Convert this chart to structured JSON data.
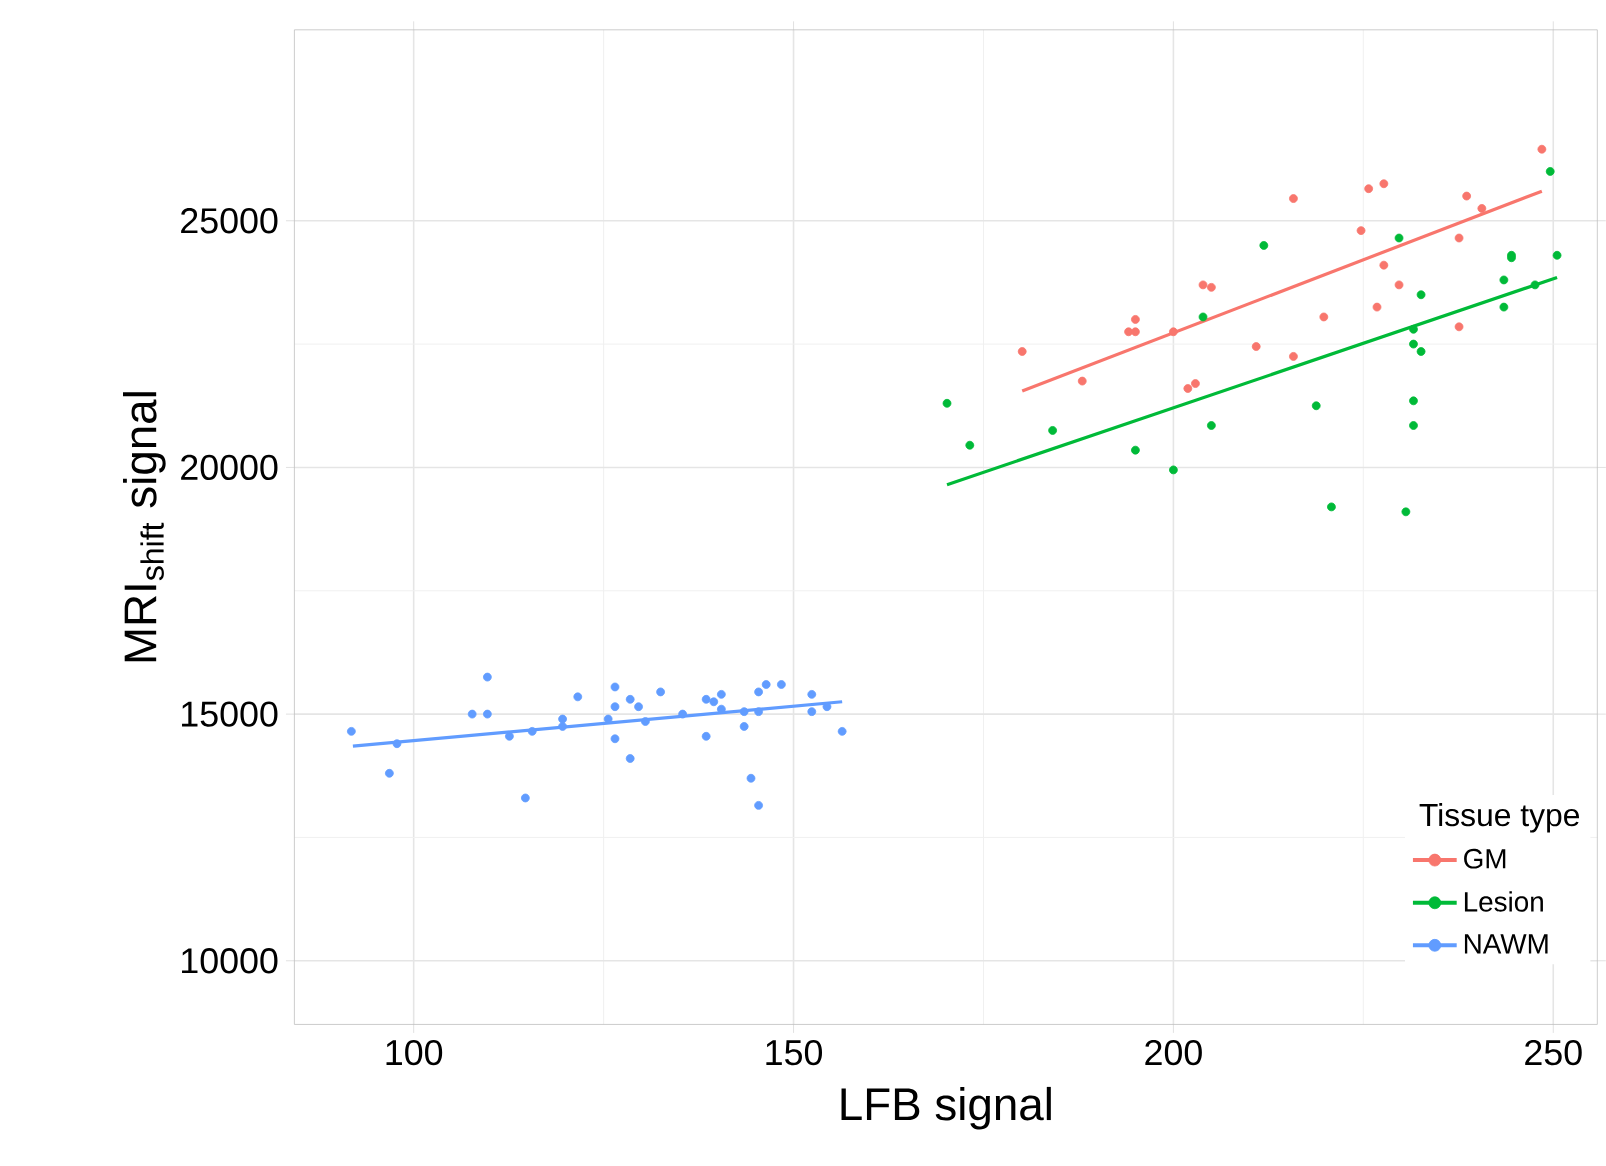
{
  "chart_data": {
    "type": "scatter",
    "xlabel": "LFB signal",
    "ylabel": "MRI$_{shift}$ signal",
    "legend_title": "Tissue type",
    "xlim": [
      84.3,
      255.8
    ],
    "ylim": [
      8710,
      28870
    ],
    "xticks": [
      100,
      150,
      200,
      250
    ],
    "yticks": [
      10000,
      15000,
      20000,
      25000
    ],
    "grid": true,
    "legend": "bottom right",
    "series": [
      {
        "name": "GM",
        "color": "#f8766d",
        "marker": "circle",
        "x": [
          180.1,
          188.0,
          194.1,
          195.0,
          195.0,
          200.0,
          201.9,
          202.9,
          203.9,
          205.0,
          210.9,
          215.8,
          215.8,
          219.8,
          224.7,
          225.7,
          226.8,
          227.7,
          227.7,
          229.7,
          237.6,
          237.6,
          238.6,
          240.6,
          248.5
        ],
        "values": [
          22350,
          21750,
          22750,
          22750,
          23000,
          22750,
          21600,
          21700,
          23700,
          23650,
          22450,
          25450,
          22250,
          23050,
          24800,
          25650,
          23250,
          25750,
          24100,
          23700,
          24650,
          22850,
          25500,
          25250,
          26450
        ]
      },
      {
        "name": "Lesion",
        "color": "#00ba38",
        "marker": "circle",
        "x": [
          170.2,
          173.2,
          184.1,
          195.0,
          200.0,
          203.9,
          205.0,
          211.9,
          218.8,
          220.8,
          229.7,
          230.6,
          231.6,
          231.6,
          232.6,
          232.6,
          231.6,
          231.6,
          243.5,
          243.5,
          244.5,
          244.5,
          247.6,
          249.6,
          250.5
        ],
        "values": [
          21300,
          20450,
          20750,
          20350,
          19950,
          23050,
          20850,
          24500,
          21250,
          19200,
          24650,
          19100,
          22800,
          22500,
          22350,
          23500,
          21350,
          20850,
          23800,
          23250,
          24300,
          24250,
          23700,
          26000,
          24300
        ]
      },
      {
        "name": "NAWM",
        "color": "#619cff",
        "marker": "circle",
        "x": [
          91.8,
          96.8,
          97.8,
          107.7,
          109.7,
          109.7,
          112.6,
          114.7,
          115.6,
          119.6,
          119.6,
          121.6,
          125.6,
          126.5,
          126.5,
          126.5,
          128.5,
          128.5,
          129.6,
          130.5,
          132.5,
          135.4,
          138.5,
          138.5,
          139.5,
          140.5,
          140.5,
          143.5,
          143.5,
          144.4,
          145.4,
          145.4,
          145.4,
          146.4,
          148.4,
          152.4,
          152.4,
          154.4,
          156.4
        ],
        "values": [
          14650,
          13800,
          14400,
          15000,
          15750,
          15000,
          14550,
          13300,
          14650,
          14900,
          14750,
          15350,
          14900,
          15550,
          15150,
          14500,
          15300,
          14100,
          15150,
          14850,
          15450,
          15000,
          15300,
          14550,
          15250,
          15400,
          15100,
          15050,
          14750,
          13700,
          15450,
          15050,
          13150,
          15600,
          15600,
          15400,
          15050,
          15150,
          14650
        ]
      },
      {
        "type": "line",
        "marker": "none",
        "color": "#f8766d",
        "x": [
          180.1,
          248.5
        ],
        "values": [
          21550,
          25600
        ]
      },
      {
        "type": "line",
        "marker": "none",
        "color": "#00ba38",
        "x": [
          170.2,
          250.5
        ],
        "values": [
          19650,
          23850
        ]
      },
      {
        "type": "line",
        "marker": "none",
        "color": "#619cff",
        "x": [
          92.0,
          156.4
        ],
        "values": [
          14350,
          15250
        ]
      }
    ]
  }
}
